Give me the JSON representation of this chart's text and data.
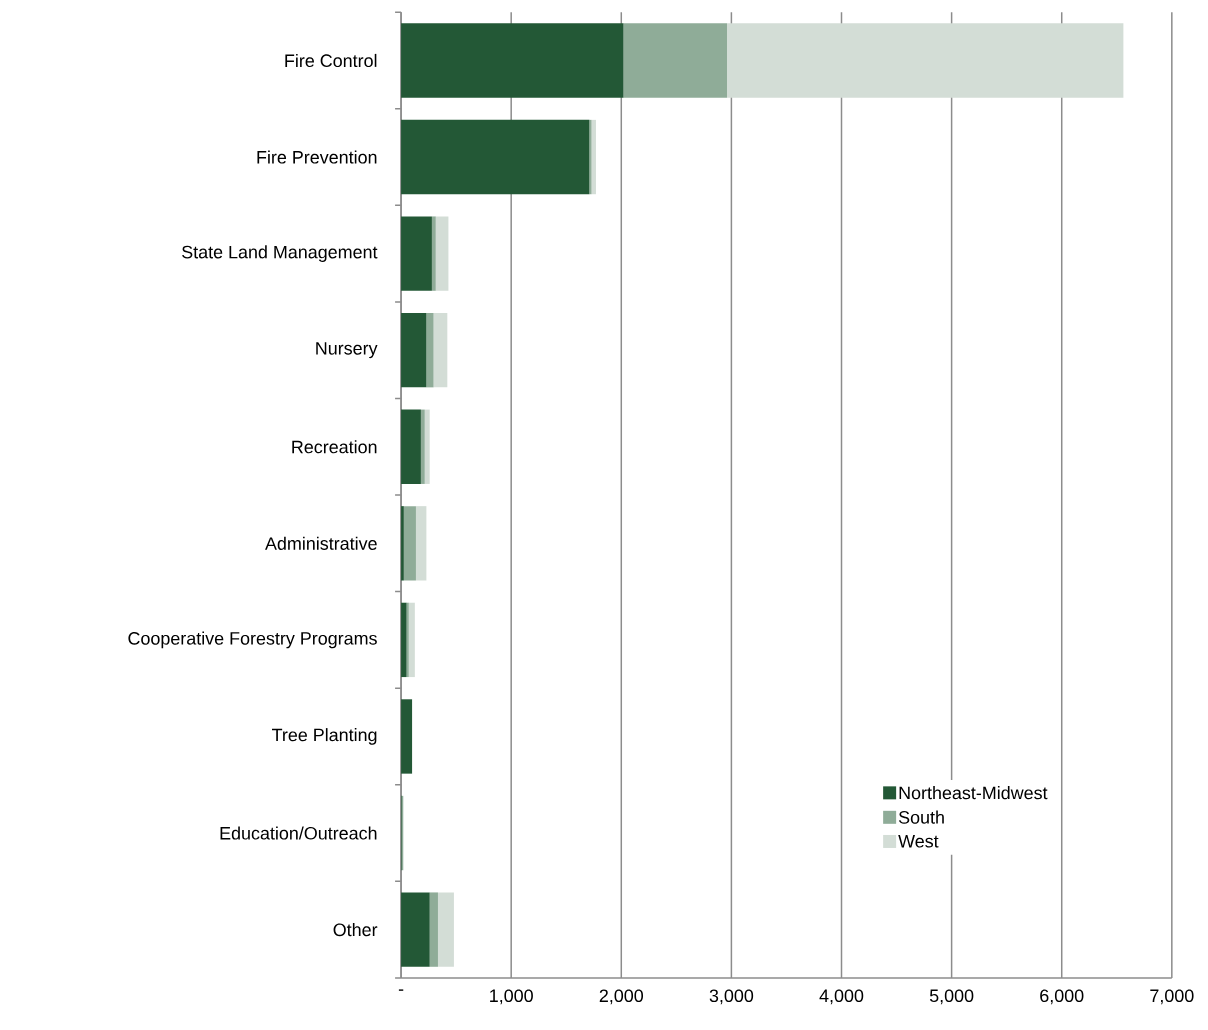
{
  "chart_data": {
    "type": "bar",
    "orientation": "horizontal",
    "stacked": true,
    "categories": [
      "Fire Control",
      "Fire Prevention",
      "State Land Management",
      "Nursery",
      "Recreation",
      "Administrative",
      "Cooperative Forestry Programs",
      "Tree Planting",
      "Education/Outreach",
      "Other"
    ],
    "series": [
      {
        "name": "Northeast-Midwest",
        "color": "#235836",
        "values": [
          2020,
          1710,
          280,
          230,
          180,
          25,
          50,
          100,
          5,
          260
        ]
      },
      {
        "name": "South",
        "color": "#8fac98",
        "values": [
          940,
          20,
          35,
          65,
          35,
          110,
          20,
          0,
          15,
          75
        ]
      },
      {
        "name": "West",
        "color": "#d3ddd6",
        "values": [
          3600,
          40,
          115,
          125,
          45,
          95,
          55,
          0,
          0,
          145
        ]
      }
    ],
    "xlim": [
      0,
      7000
    ],
    "xticks": [
      {
        "value": 0,
        "label": "-"
      },
      {
        "value": 1000,
        "label": "1,000"
      },
      {
        "value": 2000,
        "label": "2,000"
      },
      {
        "value": 3000,
        "label": "3,000"
      },
      {
        "value": 4000,
        "label": "4,000"
      },
      {
        "value": 5000,
        "label": "5,000"
      },
      {
        "value": 6000,
        "label": "6,000"
      },
      {
        "value": 7000,
        "label": "7,000"
      }
    ],
    "grid": "x",
    "legend": "bottom right"
  }
}
